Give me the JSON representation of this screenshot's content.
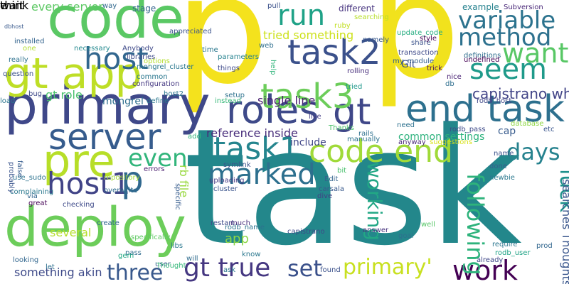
{
  "words": [
    {
      "text": "task",
      "color": "#23878b"
    },
    {
      "text": "p",
      "color": "#f4e21d"
    },
    {
      "text": "p",
      "color": "#f1e21d"
    },
    {
      "text": "code",
      "color": "#5ac864"
    },
    {
      "text": "primary",
      "color": "#3f4889"
    },
    {
      "text": "deploy",
      "color": "#6ccd5a"
    },
    {
      "text": "gt app",
      "color": "#bede26"
    },
    {
      "text": "roles",
      "color": "#3e4a89"
    },
    {
      "text": "gt",
      "color": "#3f4788"
    },
    {
      "text": "pre",
      "color": "#b7de28"
    },
    {
      "text": "server",
      "color": "#365c8d"
    },
    {
      "text": "end task",
      "color": "#2d708e"
    },
    {
      "text": "task2",
      "color": "#3b518b"
    },
    {
      "text": "task3",
      "color": "#6ccd5a"
    },
    {
      "text": "run",
      "color": "#1fa287"
    },
    {
      "text": "code end",
      "color": "#a0da39"
    },
    {
      "text": "task1",
      "color": "#25858e"
    },
    {
      "text": "host1",
      "color": "#414487"
    },
    {
      "text": "p",
      "color": "#30688e"
    },
    {
      "text": "host",
      "color": "#31668e"
    },
    {
      "text": "seem",
      "color": "#1f9a8a"
    },
    {
      "text": "want",
      "color": "#58c765"
    },
    {
      "text": "variable",
      "color": "#2c738e"
    },
    {
      "text": "method",
      "color": "#2d718e"
    },
    {
      "text": "gt true",
      "color": "#453781"
    },
    {
      "text": "work",
      "color": "#440154"
    },
    {
      "text": "three",
      "color": "#38588c"
    },
    {
      "text": "set",
      "color": "#3b518b"
    },
    {
      "text": "primary'",
      "color": "#c8e020"
    },
    {
      "text": "days",
      "color": "#26828e"
    },
    {
      "text": "luck",
      "color": "#20928c"
    },
    {
      "text": "marked",
      "color": "#2d708e"
    },
    {
      "text": "even",
      "color": "#31b57b"
    },
    {
      "text": "following",
      "color": "#2eb37c"
    },
    {
      "text": "working",
      "color": "#22a785"
    },
    {
      "text": "capistrano wherein",
      "color": "#414487"
    },
    {
      "text": "tried something",
      "color": "#cde11d"
    },
    {
      "text": "every server",
      "color": "#5cc863"
    },
    {
      "text": "single line",
      "color": "#481d6f"
    },
    {
      "text": "reference inside",
      "color": "#472c7a"
    },
    {
      "text": "gt role",
      "color": "#4ac16d"
    },
    {
      "text": "mongrel",
      "color": "#2e6e8e"
    },
    {
      "text": "something akin",
      "color": "#3e4a89"
    },
    {
      "text": "searches Thoughts",
      "color": "#39568c"
    },
    {
      "text": "common settings",
      "color": "#2db27d"
    },
    {
      "text": "include",
      "color": "#404688"
    },
    {
      "text": "app",
      "color": "#8bd646"
    },
    {
      "text": "rb file",
      "color": "#98d83e"
    },
    {
      "text": "cap",
      "color": "#375b8d"
    },
    {
      "text": "Git",
      "color": "#3c4f8a"
    },
    {
      "text": "stage",
      "color": "#33638d"
    },
    {
      "text": "way",
      "color": "#31688e"
    },
    {
      "text": "different",
      "color": "#46337f"
    },
    {
      "text": "example",
      "color": "#26828e"
    },
    {
      "text": "Subversion",
      "color": "#482677"
    },
    {
      "text": "tried",
      "color": "#1f988b"
    },
    {
      "text": "host2",
      "color": "#2a768e"
    },
    {
      "text": "name",
      "color": "#3b528b"
    },
    {
      "text": "prod",
      "color": "#31668e"
    },
    {
      "text": "etc",
      "color": "#39558c"
    },
    {
      "text": "several",
      "color": "#b5de2b"
    },
    {
      "text": "question",
      "color": "#3b528b"
    },
    {
      "text": "installed",
      "color": "#33638d"
    },
    {
      "text": "dbhost",
      "color": "#38598c"
    },
    {
      "text": "really",
      "color": "#2c718e"
    },
    {
      "text": "one",
      "color": "#b2dd2d"
    },
    {
      "text": "necessary",
      "color": "#23898e"
    },
    {
      "text": "Anybody",
      "color": "#3e4989"
    },
    {
      "text": "mongrel_cluster",
      "color": "#2a788e"
    },
    {
      "text": "configuration",
      "color": "#453882"
    },
    {
      "text": "define",
      "color": "#2a788e"
    },
    {
      "text": "errors",
      "color": "#481b6d"
    },
    {
      "text": "overwrite",
      "color": "#2f6b8e"
    },
    {
      "text": "repository",
      "color": "#a2da37"
    },
    {
      "text": "checking",
      "color": "#3e4a89"
    },
    {
      "text": "specifically",
      "color": "#5ec962"
    },
    {
      "text": "libs",
      "color": "#2a788e"
    },
    {
      "text": "pass",
      "color": "#2f6c8e"
    },
    {
      "text": "cluster",
      "color": "#3a548c"
    },
    {
      "text": "restart",
      "color": "#3e4c8a"
    },
    {
      "text": "uploading",
      "color": "#453882"
    },
    {
      "text": "symlink",
      "color": "#3b528b"
    },
    {
      "text": "rodb_name",
      "color": "#2c728e"
    },
    {
      "text": "capistrano",
      "color": "#3e4989"
    },
    {
      "text": "carsala",
      "color": "#38598c"
    },
    {
      "text": "dive",
      "color": "#423f85"
    },
    {
      "text": "much",
      "color": "#472e7c"
    },
    {
      "text": "goal",
      "color": "#2d708e"
    },
    {
      "text": "require",
      "color": "#2a768e"
    },
    {
      "text": "rodb_user",
      "color": "#20a386"
    },
    {
      "text": "rodb_pass",
      "color": "#3e4a89"
    },
    {
      "text": "rodb_host",
      "color": "#3f4788"
    },
    {
      "text": "nice",
      "color": "#482173"
    },
    {
      "text": "trick",
      "color": "#470e61"
    },
    {
      "text": "rolling",
      "color": "#472d7b"
    },
    {
      "text": "transaction",
      "color": "#3e4989"
    },
    {
      "text": "definitions",
      "color": "#2e6e8e"
    },
    {
      "text": "undefined",
      "color": "#440154"
    },
    {
      "text": "update_code",
      "color": "#26ad81"
    },
    {
      "text": "searching",
      "color": "#b8de29"
    },
    {
      "text": "namely",
      "color": "#38598c"
    },
    {
      "text": "share",
      "color": "#3b528b"
    },
    {
      "text": "style",
      "color": "#440154"
    },
    {
      "text": "web",
      "color": "#2e6e8e"
    },
    {
      "text": "time",
      "color": "#2a788e"
    },
    {
      "text": "parameters",
      "color": "#26828e"
    },
    {
      "text": "things",
      "color": "#3e4989"
    },
    {
      "text": "setup",
      "color": "#2c718e"
    },
    {
      "text": "instead",
      "color": "#37b878"
    },
    {
      "text": "live",
      "color": "#433e85"
    },
    {
      "text": "manually",
      "color": "#2c728e"
    },
    {
      "text": "rails",
      "color": "#2d708e"
    },
    {
      "text": "help",
      "color": "#31b57b"
    },
    {
      "text": "Thanks",
      "color": "#4ec36b"
    },
    {
      "text": "need",
      "color": "#2d718e"
    },
    {
      "text": "my_module",
      "color": "#35608d"
    },
    {
      "text": "anyway",
      "color": "#482878"
    },
    {
      "text": "suggestions",
      "color": "#d8e219"
    },
    {
      "text": "bit",
      "color": "#4ac16d"
    },
    {
      "text": "Edit",
      "color": "#33638d"
    },
    {
      "text": "know",
      "color": "#2a778e"
    },
    {
      "text": "answer",
      "color": "#46327e"
    },
    {
      "text": "well",
      "color": "#56c667"
    },
    {
      "text": "done",
      "color": "#365d8d"
    },
    {
      "text": "newbie",
      "color": "#2a788e"
    },
    {
      "text": "database",
      "color": "#8fd744"
    },
    {
      "text": "already",
      "color": "#3f4788"
    },
    {
      "text": "gem",
      "color": "#22a884"
    },
    {
      "text": "user",
      "color": "#365d8d"
    },
    {
      "text": "Thought",
      "color": "#35b779"
    },
    {
      "text": "will",
      "color": "#2f6c8e"
    },
    {
      "text": "ask",
      "color": "#2b748e"
    },
    {
      "text": "found",
      "color": "#3b518b"
    },
    {
      "text": "let",
      "color": "#2d708e"
    },
    {
      "text": "looking",
      "color": "#31668e"
    },
    {
      "text": "use_sudo",
      "color": "#2c728e"
    },
    {
      "text": "complaining",
      "color": "#2a788e"
    },
    {
      "text": "probably",
      "color": "#3a548c"
    },
    {
      "text": "false",
      "color": "#365c8d"
    },
    {
      "text": "via",
      "color": "#32658e"
    },
    {
      "text": "great",
      "color": "#440154"
    },
    {
      "text": "create",
      "color": "#31688e"
    },
    {
      "text": "load",
      "color": "#2b758e"
    },
    {
      "text": "bug",
      "color": "#3e4989"
    },
    {
      "text": "libraries",
      "color": "#3e4a89"
    },
    {
      "text": "options",
      "color": "#b2dd2d"
    },
    {
      "text": "appreciated",
      "color": "#3b528b"
    },
    {
      "text": "common",
      "color": "#2a778e"
    },
    {
      "text": "specific",
      "color": "#365c8d"
    },
    {
      "text": "add",
      "color": "#31b57b"
    },
    {
      "text": "pull",
      "color": "#3b518b"
    },
    {
      "text": "ruby",
      "color": "#c2df23"
    },
    {
      "text": "db",
      "color": "#2e6f8e"
    },
    {
      "text": "wait",
      "color": "#3b518b"
    },
    {
      "text": "e",
      "color": "#46307e"
    },
    {
      "text": "think",
      "color": "#d8e219"
    }
  ]
}
